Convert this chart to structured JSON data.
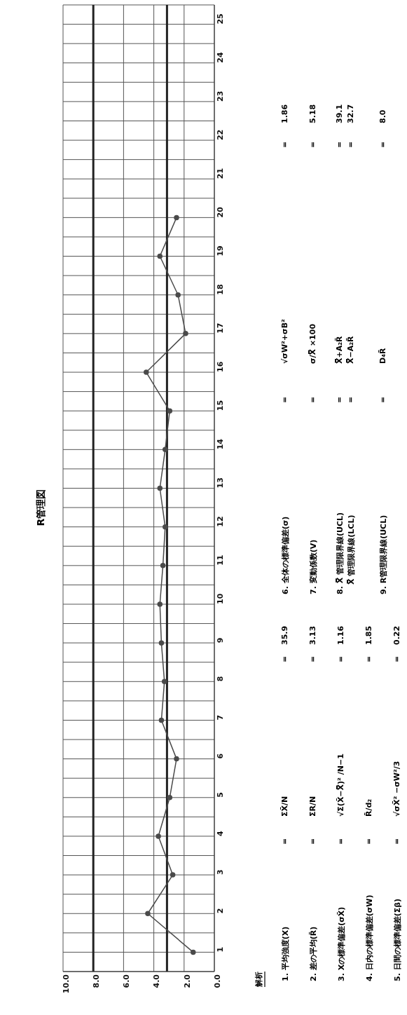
{
  "chart_data": {
    "type": "line",
    "title": "R管理図",
    "series": [
      {
        "color": "#4a4a4a",
        "x": [
          1.4,
          4.4,
          2.75,
          3.7,
          2.95,
          2.5,
          3.5,
          3.3,
          3.5,
          3.6,
          3.4,
          3.25,
          3.6,
          3.25,
          2.95,
          4.5,
          1.9,
          2.4,
          3.6,
          2.5
        ],
        "values": [
          1,
          2,
          3,
          4,
          5,
          6,
          7,
          8,
          9,
          10,
          11,
          12,
          13,
          14,
          15,
          16,
          17,
          18,
          19,
          20
        ]
      }
    ],
    "ylim": [
      0.5,
      25.5
    ],
    "yticks": [
      1,
      {
        "value": 1.5,
        "label": null
      },
      2,
      {
        "value": 2.5,
        "label": null
      },
      3,
      {
        "value": 3.5,
        "label": null
      },
      4,
      {
        "value": 4.5,
        "label": null
      },
      5,
      {
        "value": 5.5,
        "label": null
      },
      6,
      {
        "value": 6.5,
        "label": null
      },
      7,
      {
        "value": 7.5,
        "label": null
      },
      8,
      {
        "value": 8.5,
        "label": null
      },
      9,
      {
        "value": 9.5,
        "label": null
      },
      10,
      {
        "value": 10.5,
        "label": null
      },
      11,
      {
        "value": 11.5,
        "label": null
      },
      12,
      {
        "value": 12.5,
        "label": null
      },
      13,
      {
        "value": 13.5,
        "label": null
      },
      14,
      {
        "value": 14.5,
        "label": null
      },
      15,
      {
        "value": 15.5,
        "label": null
      },
      16,
      {
        "value": 16.5,
        "label": null
      },
      17,
      {
        "value": 17.5,
        "label": null
      },
      18,
      {
        "value": 18.5,
        "label": null
      },
      19,
      {
        "value": 19.5,
        "label": null
      },
      20,
      {
        "value": 20.5,
        "label": null
      },
      21,
      {
        "value": 21.5,
        "label": null
      },
      22,
      {
        "value": 22.5,
        "label": null
      },
      23,
      {
        "value": 23.5,
        "label": null
      },
      24,
      {
        "value": 24.5,
        "label": null
      },
      25,
      {
        "value": 25.5,
        "label": null
      }
    ],
    "xlim": [
      10,
      0
    ],
    "xticks": [
      {
        "value": 10,
        "label": "10.0"
      },
      {
        "value": 8,
        "label": "8.0"
      },
      {
        "value": 6,
        "label": "6.0"
      },
      {
        "value": 4,
        "label": "4.0"
      },
      {
        "value": 2,
        "label": "2.0"
      },
      {
        "value": 0,
        "label": "0.0"
      }
    ],
    "ref_lines": [
      {
        "axis": "x",
        "value": 8.0,
        "color": "#222222"
      },
      {
        "axis": "x",
        "value": 3.13,
        "color": "#222222"
      }
    ],
    "grid": true,
    "marker": "circle",
    "line_style": "solid",
    "annotations": [
      "解析",
      "1. 平均強度(X)",
      "=",
      "ΣX̄/N",
      "=",
      "35.9",
      "2. 差の平均(R̄)",
      "=",
      "ΣR/N",
      "=",
      "3.13",
      "3. Xの標準偏差(σX̄)",
      "=",
      "√Σ(X̄−X̿)² /N−1",
      "=",
      "1.16",
      "4. 日内の標準偏差(σW)",
      "=",
      "R̄/d₂",
      "=",
      "1.85",
      "5. 日間の標準偏差(Σβ)",
      "=",
      "√σX̄² −σW²/3",
      "=",
      "0.22",
      "6. 全体の標準偏差(σ)",
      "=",
      "√σW²+σB²",
      "=",
      "1.86",
      "7. 変動係数(V)",
      "=",
      "σ/X̿  ×100",
      "=",
      "5.18",
      "8. X̿ 管理限界線(UCL)",
      "=",
      "X̿+A₂R̄",
      "=",
      "39.1",
      "X̿ 管理限界線(LCL)",
      "=",
      "X̿−A₂R̄",
      "=",
      "32.7",
      "9. R管理限界線(UCL)",
      "=",
      "D₄R̄",
      "=",
      "8.0"
    ]
  }
}
